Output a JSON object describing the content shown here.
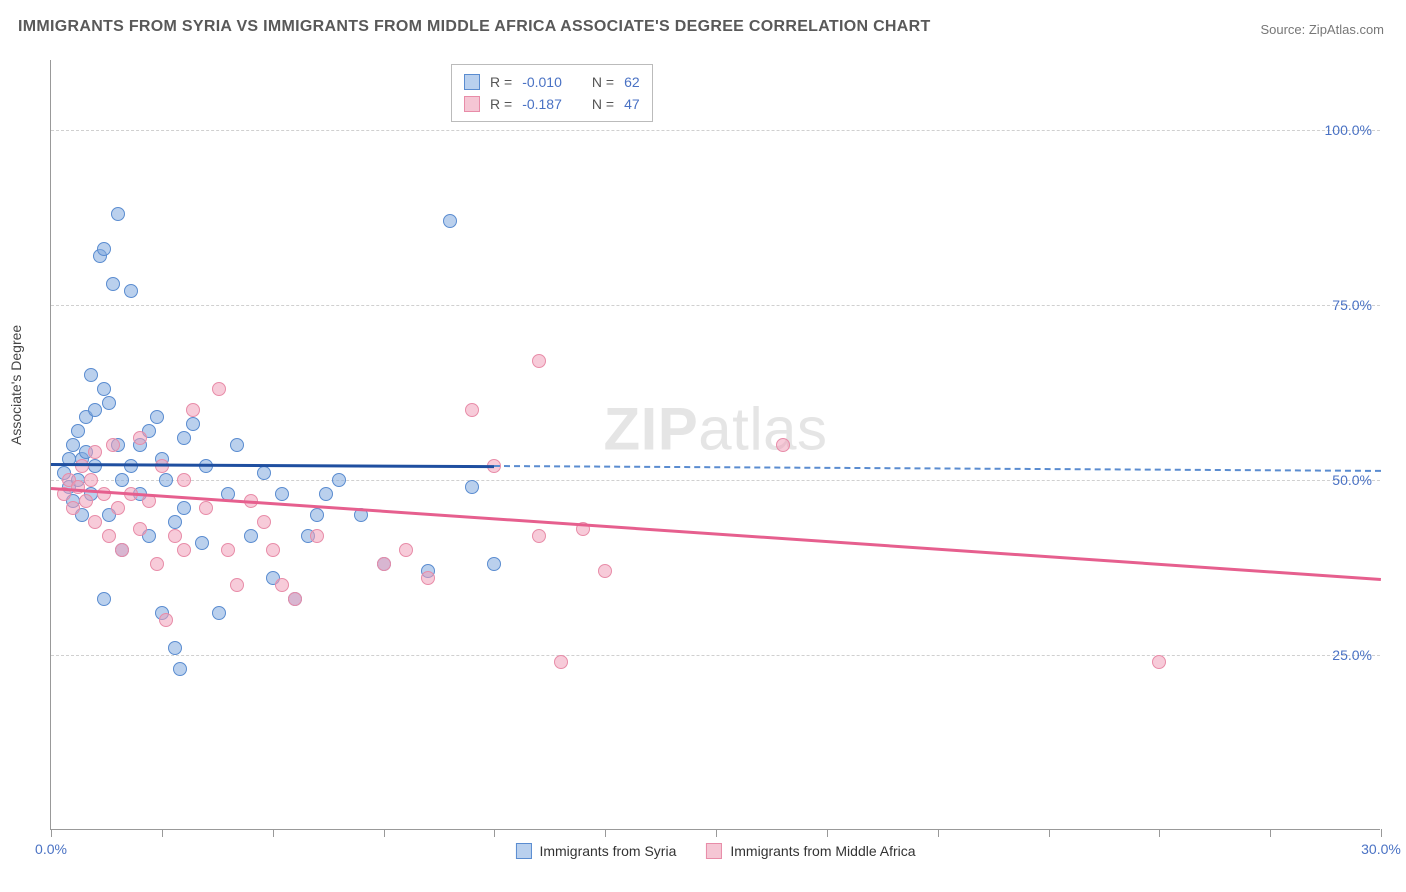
{
  "title": "IMMIGRANTS FROM SYRIA VS IMMIGRANTS FROM MIDDLE AFRICA ASSOCIATE'S DEGREE CORRELATION CHART",
  "source": "Source: ZipAtlas.com",
  "ylabel": "Associate's Degree",
  "watermark": {
    "bold": "ZIP",
    "rest": "atlas"
  },
  "chart": {
    "type": "scatter-correlation",
    "background_color": "#ffffff",
    "grid_color": "#d0d0d0",
    "axis_color": "#999999",
    "xlim": [
      0.0,
      30.0
    ],
    "ylim": [
      0.0,
      110.0
    ],
    "x_ticks": [
      0.0,
      2.5,
      5.0,
      7.5,
      10.0,
      12.5,
      15.0,
      17.5,
      20.0,
      22.5,
      25.0,
      27.5,
      30.0
    ],
    "x_tick_labels": {
      "0": "0.0%",
      "30": "30.0%"
    },
    "y_gridlines": [
      25.0,
      50.0,
      75.0,
      100.0
    ],
    "y_tick_labels": {
      "25": "25.0%",
      "50": "50.0%",
      "75": "75.0%",
      "100": "100.0%"
    },
    "axis_label_color": "#4a72c4",
    "axis_label_fontsize": 14,
    "title_color": "#595959",
    "title_fontsize": 16,
    "marker_radius": 7,
    "marker_opacity": 0.55,
    "line_width": 2.5
  },
  "series": [
    {
      "name": "Immigrants from Syria",
      "fill_color": "rgba(130,170,222,0.55)",
      "stroke_color": "#5a8cd0",
      "line_color": "#1f4fa0",
      "dash_color": "#5a8cd0",
      "swatch_fill": "#b9d0ee",
      "swatch_border": "#5a8cd0",
      "R": "-0.010",
      "N": "62",
      "trend": {
        "x1": 0.0,
        "y1": 52.5,
        "x2": 10.0,
        "y2": 52.2,
        "x_dash_end": 30.0,
        "y_dash_end": 51.5
      },
      "points": [
        [
          0.3,
          51
        ],
        [
          0.4,
          53
        ],
        [
          0.4,
          49
        ],
        [
          0.5,
          55
        ],
        [
          0.5,
          47
        ],
        [
          0.6,
          57
        ],
        [
          0.6,
          50
        ],
        [
          0.7,
          53
        ],
        [
          0.7,
          45
        ],
        [
          0.8,
          59
        ],
        [
          0.8,
          54
        ],
        [
          0.9,
          65
        ],
        [
          0.9,
          48
        ],
        [
          1.0,
          52
        ],
        [
          1.0,
          60
        ],
        [
          1.1,
          82
        ],
        [
          1.2,
          83
        ],
        [
          1.2,
          63
        ],
        [
          1.2,
          33
        ],
        [
          1.3,
          61
        ],
        [
          1.3,
          45
        ],
        [
          1.4,
          78
        ],
        [
          1.5,
          88
        ],
        [
          1.5,
          55
        ],
        [
          1.6,
          50
        ],
        [
          1.6,
          40
        ],
        [
          1.8,
          77
        ],
        [
          1.8,
          52
        ],
        [
          2.0,
          55
        ],
        [
          2.0,
          48
        ],
        [
          2.2,
          57
        ],
        [
          2.2,
          42
        ],
        [
          2.4,
          59
        ],
        [
          2.5,
          53
        ],
        [
          2.5,
          31
        ],
        [
          2.6,
          50
        ],
        [
          2.8,
          26
        ],
        [
          2.8,
          44
        ],
        [
          2.9,
          23
        ],
        [
          3.0,
          56
        ],
        [
          3.0,
          46
        ],
        [
          3.2,
          58
        ],
        [
          3.4,
          41
        ],
        [
          3.5,
          52
        ],
        [
          3.8,
          31
        ],
        [
          4.0,
          48
        ],
        [
          4.2,
          55
        ],
        [
          4.5,
          42
        ],
        [
          4.8,
          51
        ],
        [
          5.0,
          36
        ],
        [
          5.2,
          48
        ],
        [
          5.5,
          33
        ],
        [
          5.8,
          42
        ],
        [
          6.0,
          45
        ],
        [
          6.2,
          48
        ],
        [
          6.5,
          50
        ],
        [
          7.0,
          45
        ],
        [
          7.5,
          38
        ],
        [
          8.5,
          37
        ],
        [
          9.5,
          49
        ],
        [
          9.0,
          87
        ],
        [
          10.0,
          38
        ]
      ]
    },
    {
      "name": "Immigrants from Middle Africa",
      "fill_color": "rgba(240,160,185,0.55)",
      "stroke_color": "#e88ca8",
      "line_color": "#e65f8e",
      "swatch_fill": "#f5c6d4",
      "swatch_border": "#e88ca8",
      "R": "-0.187",
      "N": "47",
      "trend": {
        "x1": 0.0,
        "y1": 49.0,
        "x2": 30.0,
        "y2": 36.0
      },
      "points": [
        [
          0.3,
          48
        ],
        [
          0.4,
          50
        ],
        [
          0.5,
          46
        ],
        [
          0.6,
          49
        ],
        [
          0.7,
          52
        ],
        [
          0.8,
          47
        ],
        [
          0.9,
          50
        ],
        [
          1.0,
          54
        ],
        [
          1.0,
          44
        ],
        [
          1.2,
          48
        ],
        [
          1.3,
          42
        ],
        [
          1.4,
          55
        ],
        [
          1.5,
          46
        ],
        [
          1.6,
          40
        ],
        [
          1.8,
          48
        ],
        [
          2.0,
          56
        ],
        [
          2.0,
          43
        ],
        [
          2.2,
          47
        ],
        [
          2.4,
          38
        ],
        [
          2.5,
          52
        ],
        [
          2.6,
          30
        ],
        [
          2.8,
          42
        ],
        [
          3.0,
          50
        ],
        [
          3.0,
          40
        ],
        [
          3.2,
          60
        ],
        [
          3.5,
          46
        ],
        [
          3.8,
          63
        ],
        [
          4.0,
          40
        ],
        [
          4.2,
          35
        ],
        [
          4.5,
          47
        ],
        [
          4.8,
          44
        ],
        [
          5.0,
          40
        ],
        [
          5.2,
          35
        ],
        [
          5.5,
          33
        ],
        [
          6.0,
          42
        ],
        [
          7.5,
          38
        ],
        [
          8.0,
          40
        ],
        [
          8.5,
          36
        ],
        [
          9.5,
          60
        ],
        [
          10.0,
          52
        ],
        [
          11.0,
          67
        ],
        [
          11.0,
          42
        ],
        [
          11.5,
          24
        ],
        [
          12.0,
          43
        ],
        [
          12.5,
          37
        ],
        [
          16.5,
          55
        ],
        [
          25.0,
          24
        ]
      ]
    }
  ],
  "stats_labels": {
    "R": "R =",
    "N": "N ="
  },
  "legend": {
    "position": "bottom-center"
  }
}
